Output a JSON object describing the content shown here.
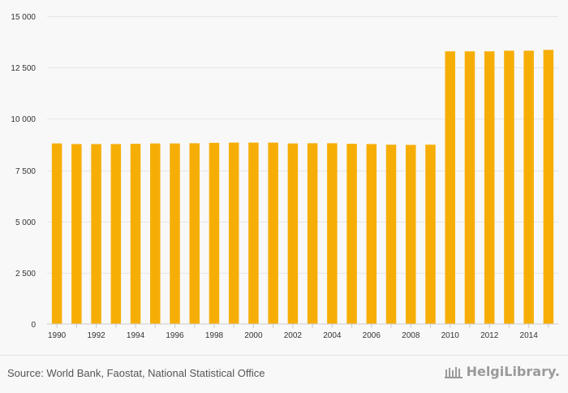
{
  "chart_data": {
    "type": "bar",
    "categories": [
      "1990",
      "1991",
      "1992",
      "1993",
      "1994",
      "1995",
      "1996",
      "1997",
      "1998",
      "1999",
      "2000",
      "2001",
      "2002",
      "2003",
      "2004",
      "2005",
      "2006",
      "2007",
      "2008",
      "2009",
      "2010",
      "2011",
      "2012",
      "2013",
      "2014",
      "2015"
    ],
    "x_tick_labels": [
      "1990",
      "1992",
      "1994",
      "1996",
      "1998",
      "2000",
      "2002",
      "2004",
      "2006",
      "2008",
      "2010",
      "2012",
      "2014"
    ],
    "values": [
      8800,
      8770,
      8770,
      8770,
      8780,
      8800,
      8800,
      8810,
      8830,
      8840,
      8840,
      8840,
      8800,
      8810,
      8810,
      8780,
      8770,
      8740,
      8730,
      8740,
      13290,
      13290,
      13290,
      13320,
      13320,
      13360
    ],
    "ylim": [
      0,
      15000
    ],
    "y_ticks": [
      0,
      2500,
      5000,
      7500,
      10000,
      12500,
      15000
    ],
    "y_tick_labels": [
      "0",
      "2 500",
      "5 000",
      "7 500",
      "10 000",
      "12 500",
      "15 000"
    ],
    "grid": true,
    "bar_color": "#f6ae07",
    "grid_color": "#e6e6e6"
  },
  "footer": {
    "source": "Source: World Bank, Faostat, National Statistical Office",
    "logo_text": "HelgiLibrary."
  }
}
